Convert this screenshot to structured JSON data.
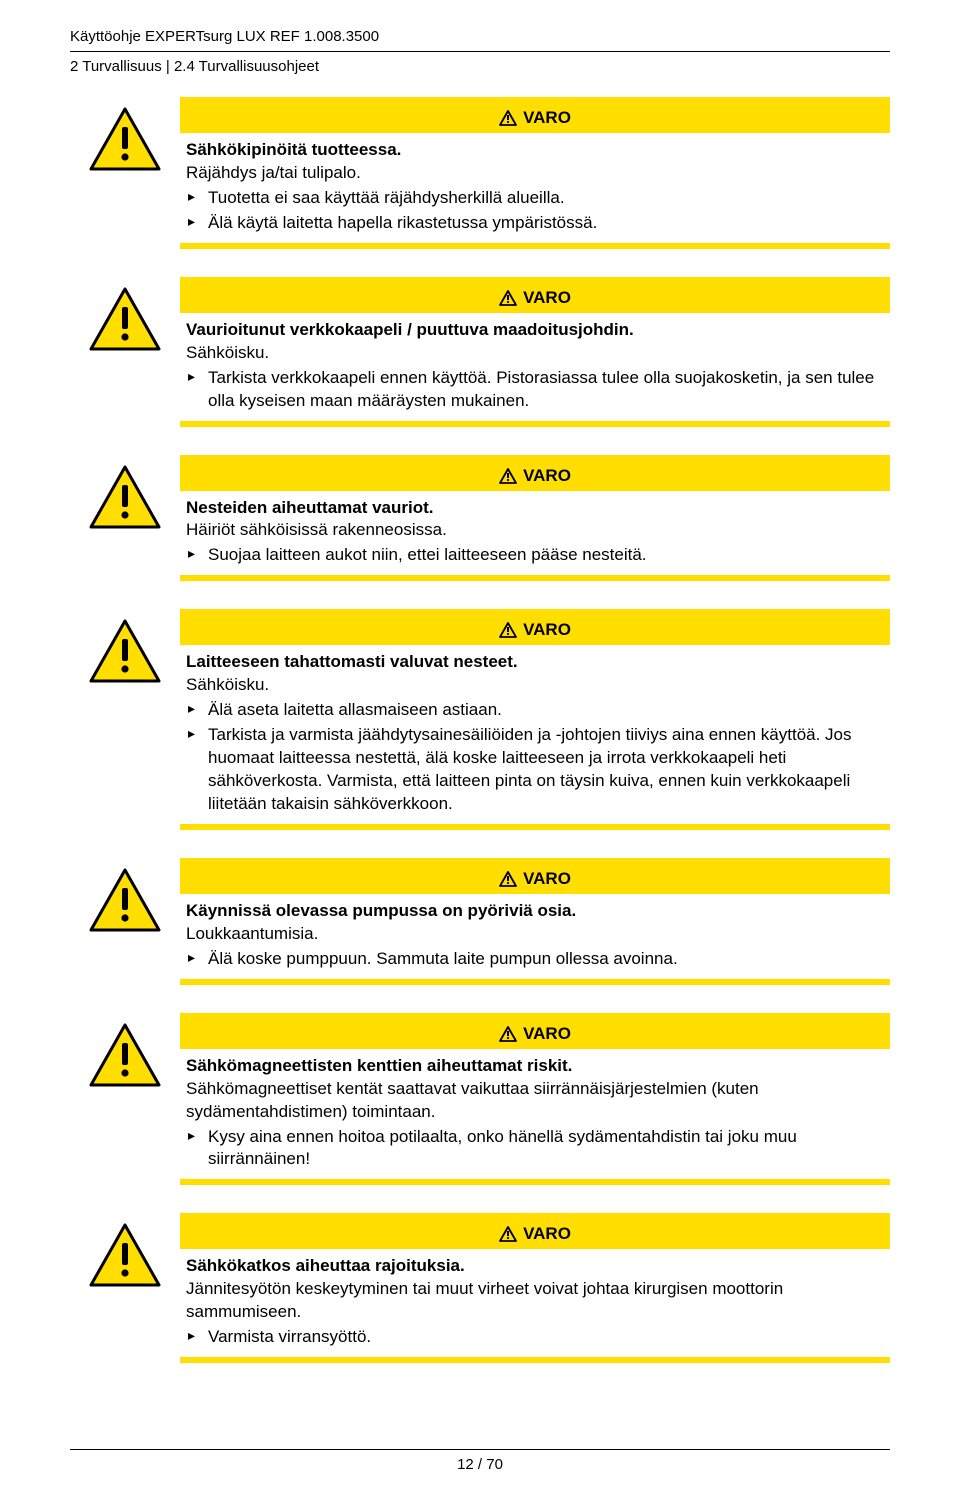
{
  "header": {
    "line1": "Käyttöohje EXPERTsurg LUX REF 1.008.3500",
    "line2": "2 Turvallisuus | 2.4 Turvallisuusohjeet"
  },
  "colors": {
    "warning_yellow": "#ffde00",
    "icon_border": "#000000",
    "text": "#000000"
  },
  "banner_label": "VARO",
  "warnings": [
    {
      "title": "Sähkökipinöitä tuotteessa.",
      "sub": "Räjähdys ja/tai tulipalo.",
      "items": [
        "Tuotetta ei saa käyttää räjähdysherkillä alueilla.",
        "Älä käytä laitetta hapella rikastetussa ympäristössä."
      ]
    },
    {
      "title": "Vaurioitunut verkkokaapeli / puuttuva maadoitusjohdin.",
      "sub": "Sähköisku.",
      "items": [
        "Tarkista verkkokaapeli ennen käyttöä. Pistorasiassa tulee olla suojakosketin, ja sen tulee olla kyseisen maan määräysten mukainen."
      ]
    },
    {
      "title": "Nesteiden aiheuttamat vauriot.",
      "sub": "Häiriöt sähköisissä rakenneosissa.",
      "items": [
        "Suojaa laitteen aukot niin, ettei laitteeseen pääse nesteitä."
      ]
    },
    {
      "title": "Laitteeseen tahattomasti valuvat nesteet.",
      "sub": "Sähköisku.",
      "items": [
        "Älä aseta laitetta allasmaiseen astiaan.",
        "Tarkista ja varmista jäähdytysainesäiliöiden ja -johtojen tiiviys aina ennen käyttöä. Jos huomaat laitteessa nestettä, älä koske laitteeseen ja irrota verkkokaapeli heti sähköverkosta. Varmista, että laitteen pinta on täysin kuiva, ennen kuin verkkokaapeli liitetään takaisin sähköverkkoon."
      ]
    },
    {
      "title": "Käynnissä olevassa pumpussa on pyöriviä osia.",
      "sub": "Loukkaantumisia.",
      "items": [
        "Älä koske pumppuun. Sammuta laite pumpun ollessa avoinna."
      ]
    },
    {
      "title": "Sähkömagneettisten kenttien aiheuttamat riskit.",
      "sub": "Sähkömagneettiset kentät saattavat vaikuttaa siirrännäisjärjestelmien (kuten sydämentahdistimen) toimintaan.",
      "items": [
        "Kysy aina ennen hoitoa potilaalta, onko hänellä sydämentahdistin tai joku muu siirrännäinen!"
      ]
    },
    {
      "title": "Sähkökatkos aiheuttaa rajoituksia.",
      "sub": "Jännitesyötön keskeytyminen tai muut virheet voivat johtaa kirurgisen moottorin sammumiseen.",
      "items": [
        "Varmista virransyöttö."
      ]
    }
  ],
  "footer": {
    "page": "12 / 70"
  }
}
